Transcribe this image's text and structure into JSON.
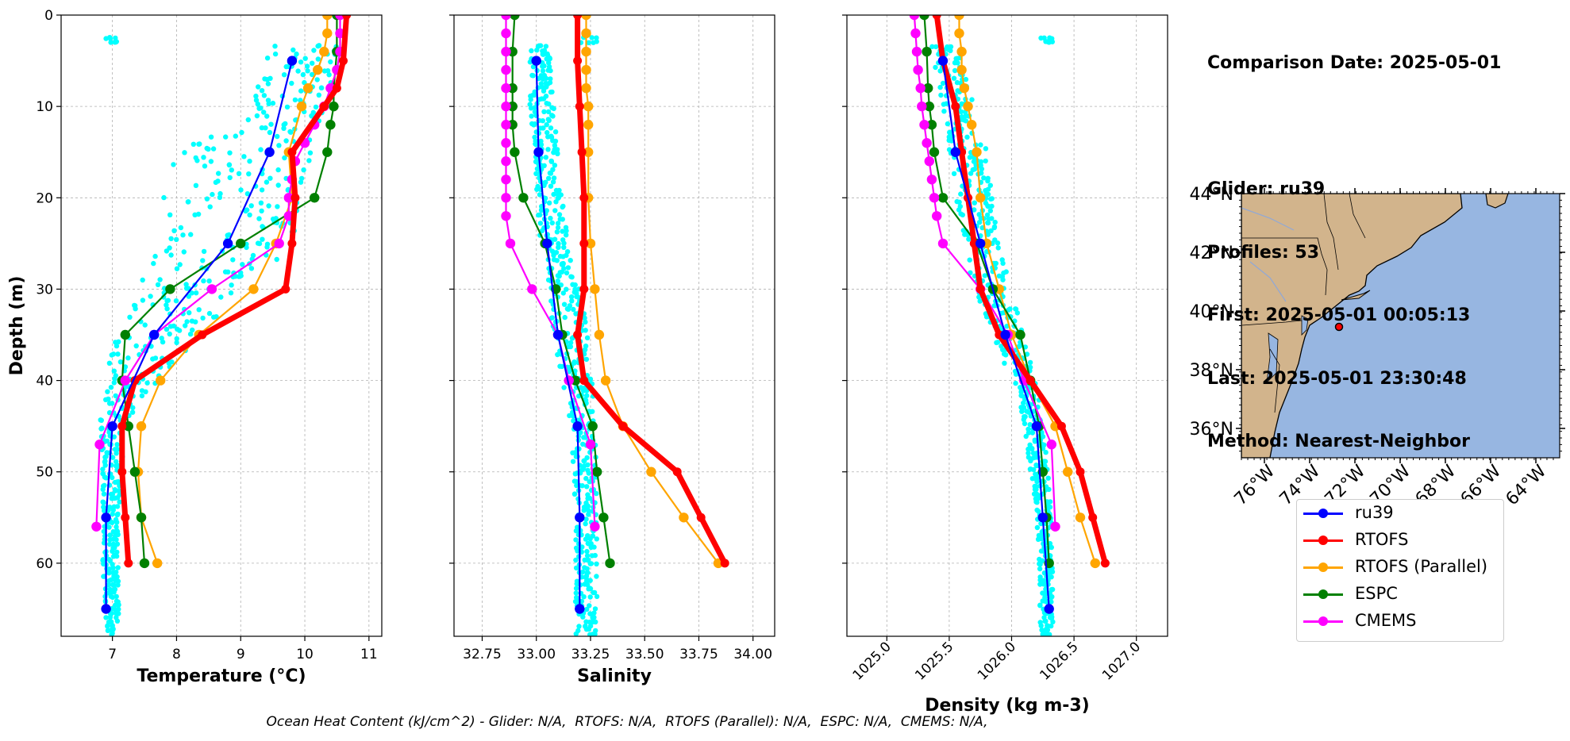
{
  "info": {
    "comparison_date": "Comparison Date: 2025-05-01",
    "glider": "Glider: ru39",
    "profiles": "Profiles: 53",
    "first": "First: 2025-05-01 00:05:13",
    "last": "Last: 2025-05-01 23:30:48",
    "method": "Method: Nearest-Neighbor"
  },
  "footer": "Ocean Heat Content (kJ/cm^2) - Glider: N/A,  RTOFS: N/A,  RTOFS (Parallel): N/A,  ESPC: N/A,  CMEMS: N/A,",
  "colors": {
    "ru39": "#0000ff",
    "RTOFS": "#ff0000",
    "RTOFS (Parallel)": "#ffa500",
    "ESPC": "#008000",
    "CMEMS": "#ff00ff",
    "glider_scatter": "#00ffff",
    "land": "#d2b48c",
    "ocean": "#97b6e1",
    "grid": "#b0b0b0"
  },
  "legend": [
    {
      "label": "ru39",
      "color": "#0000ff"
    },
    {
      "label": "RTOFS",
      "color": "#ff0000"
    },
    {
      "label": "RTOFS (Parallel)",
      "color": "#ffa500"
    },
    {
      "label": "ESPC",
      "color": "#008000"
    },
    {
      "label": "CMEMS",
      "color": "#ff00ff"
    }
  ],
  "chart_data": [
    {
      "type": "line",
      "xlabel": "Temperature (°C)",
      "ylabel": "Depth (m)",
      "xlim": [
        6.2,
        11.2
      ],
      "ylim": [
        68,
        0
      ],
      "xticks": [
        7,
        8,
        9,
        10,
        11
      ],
      "yticks": [
        0,
        10,
        20,
        30,
        40,
        50,
        60
      ],
      "grid": true,
      "scatter_band": [
        [
          3,
          9.4,
          10.6
        ],
        [
          10,
          9.2,
          10.3
        ],
        [
          15,
          8.0,
          10.1
        ],
        [
          20,
          7.8,
          10.0
        ],
        [
          25,
          7.8,
          9.9
        ],
        [
          30,
          7.3,
          9.0
        ],
        [
          35,
          7.0,
          8.4
        ],
        [
          40,
          6.9,
          7.7
        ],
        [
          45,
          6.8,
          7.2
        ],
        [
          50,
          6.85,
          7.15
        ],
        [
          55,
          6.85,
          7.1
        ],
        [
          60,
          6.85,
          7.1
        ],
        [
          67,
          6.9,
          7.1
        ]
      ],
      "series": [
        {
          "name": "ru39",
          "depth": [
            5,
            15,
            25,
            35,
            45,
            55,
            65
          ],
          "values": [
            9.8,
            9.45,
            8.8,
            7.65,
            7.0,
            6.9,
            6.9
          ]
        },
        {
          "name": "RTOFS",
          "depth": [
            0,
            5,
            8,
            10,
            15,
            20,
            25,
            30,
            35,
            40,
            45,
            50,
            55,
            60
          ],
          "values": [
            10.65,
            10.6,
            10.5,
            10.3,
            9.8,
            9.85,
            9.8,
            9.7,
            8.4,
            7.35,
            7.15,
            7.15,
            7.2,
            7.25
          ]
        },
        {
          "name": "RTOFS (Parallel)",
          "depth": [
            0,
            2,
            4,
            6,
            8,
            10,
            15,
            20,
            25,
            30,
            35,
            40,
            45,
            50,
            55,
            60
          ],
          "values": [
            10.35,
            10.35,
            10.3,
            10.2,
            10.05,
            9.95,
            9.75,
            9.8,
            9.55,
            9.2,
            8.35,
            7.75,
            7.45,
            7.4,
            7.45,
            7.7
          ]
        },
        {
          "name": "ESPC",
          "depth": [
            0,
            4,
            8,
            10,
            12,
            15,
            20,
            25,
            30,
            35,
            40,
            45,
            50,
            55,
            60
          ],
          "values": [
            10.5,
            10.5,
            10.45,
            10.45,
            10.4,
            10.35,
            10.15,
            9.0,
            7.9,
            7.2,
            7.15,
            7.25,
            7.35,
            7.45,
            7.5
          ]
        },
        {
          "name": "CMEMS",
          "depth": [
            0,
            2,
            4,
            6,
            8,
            10,
            12,
            14,
            16,
            18,
            20,
            22,
            25,
            30,
            35,
            40,
            47,
            56
          ],
          "values": [
            10.55,
            10.55,
            10.55,
            10.5,
            10.4,
            10.3,
            10.15,
            10.0,
            9.85,
            9.8,
            9.75,
            9.75,
            9.6,
            8.55,
            7.65,
            7.2,
            6.8,
            6.75
          ]
        }
      ]
    },
    {
      "type": "line",
      "xlabel": "Salinity",
      "ylabel": "",
      "xlim": [
        32.62,
        34.1
      ],
      "ylim": [
        68,
        0
      ],
      "xticks": [
        32.75,
        33.0,
        33.25,
        33.5,
        33.75,
        34.0
      ],
      "yticks": [
        0,
        10,
        20,
        30,
        40,
        50,
        60
      ],
      "grid": true,
      "scatter_band": [
        [
          3,
          32.97,
          33.07
        ],
        [
          10,
          32.97,
          33.08
        ],
        [
          15,
          32.99,
          33.1
        ],
        [
          20,
          33.0,
          33.12
        ],
        [
          25,
          33.02,
          33.15
        ],
        [
          30,
          33.05,
          33.2
        ],
        [
          35,
          33.08,
          33.24
        ],
        [
          40,
          33.12,
          33.26
        ],
        [
          45,
          33.16,
          33.27
        ],
        [
          50,
          33.17,
          33.28
        ],
        [
          55,
          33.18,
          33.28
        ],
        [
          60,
          33.18,
          33.28
        ],
        [
          67,
          33.18,
          33.28
        ]
      ],
      "series": [
        {
          "name": "ru39",
          "depth": [
            5,
            15,
            25,
            35,
            45,
            55,
            65
          ],
          "values": [
            33.0,
            33.01,
            33.05,
            33.1,
            33.19,
            33.2,
            33.2
          ]
        },
        {
          "name": "RTOFS",
          "depth": [
            0,
            5,
            10,
            15,
            20,
            25,
            30,
            35,
            40,
            45,
            50,
            55,
            60
          ],
          "values": [
            33.19,
            33.19,
            33.2,
            33.21,
            33.22,
            33.22,
            33.22,
            33.19,
            33.22,
            33.4,
            33.65,
            33.76,
            33.87
          ]
        },
        {
          "name": "RTOFS (Parallel)",
          "depth": [
            0,
            2,
            4,
            6,
            8,
            10,
            12,
            15,
            20,
            25,
            30,
            35,
            40,
            45,
            50,
            55,
            60
          ],
          "values": [
            33.23,
            33.23,
            33.23,
            33.23,
            33.23,
            33.24,
            33.24,
            33.24,
            33.24,
            33.25,
            33.27,
            33.29,
            33.32,
            33.4,
            33.53,
            33.68,
            33.84
          ]
        },
        {
          "name": "ESPC",
          "depth": [
            0,
            4,
            8,
            10,
            12,
            15,
            20,
            25,
            30,
            35,
            40,
            45,
            50,
            55,
            60
          ],
          "values": [
            32.9,
            32.89,
            32.89,
            32.89,
            32.89,
            32.9,
            32.94,
            33.04,
            33.09,
            33.12,
            33.18,
            33.26,
            33.28,
            33.31,
            33.34
          ]
        },
        {
          "name": "CMEMS",
          "depth": [
            0,
            2,
            4,
            6,
            8,
            10,
            12,
            14,
            16,
            18,
            20,
            22,
            25,
            30,
            35,
            40,
            47,
            56
          ],
          "values": [
            32.86,
            32.86,
            32.86,
            32.86,
            32.86,
            32.86,
            32.86,
            32.86,
            32.86,
            32.86,
            32.86,
            32.86,
            32.88,
            32.98,
            33.1,
            33.15,
            33.25,
            33.27
          ]
        }
      ]
    },
    {
      "type": "line",
      "xlabel": "Density (kg m-3)",
      "ylabel": "",
      "xlim": [
        1024.68,
        1027.25
      ],
      "ylim": [
        68,
        0
      ],
      "xticks": [
        1025.0,
        1025.5,
        1026.0,
        1026.5,
        1027.0
      ],
      "yticks": [
        0,
        10,
        20,
        30,
        40,
        50,
        60
      ],
      "grid": true,
      "scatter_band": [
        [
          3,
          1025.35,
          1025.55
        ],
        [
          10,
          1025.45,
          1025.7
        ],
        [
          15,
          1025.5,
          1025.8
        ],
        [
          20,
          1025.55,
          1025.85
        ],
        [
          25,
          1025.6,
          1025.9
        ],
        [
          30,
          1025.7,
          1026.0
        ],
        [
          35,
          1025.85,
          1026.1
        ],
        [
          40,
          1026.0,
          1026.2
        ],
        [
          45,
          1026.1,
          1026.25
        ],
        [
          50,
          1026.15,
          1026.3
        ],
        [
          55,
          1026.2,
          1026.32
        ],
        [
          60,
          1026.22,
          1026.33
        ],
        [
          67,
          1026.23,
          1026.33
        ]
      ],
      "series": [
        {
          "name": "ru39",
          "depth": [
            5,
            15,
            25,
            35,
            45,
            55,
            65
          ],
          "values": [
            1025.45,
            1025.55,
            1025.75,
            1025.95,
            1026.2,
            1026.25,
            1026.3
          ]
        },
        {
          "name": "RTOFS",
          "depth": [
            0,
            5,
            10,
            15,
            20,
            25,
            30,
            35,
            40,
            45,
            50,
            55,
            60
          ],
          "values": [
            1025.4,
            1025.45,
            1025.55,
            1025.6,
            1025.65,
            1025.7,
            1025.75,
            1025.9,
            1026.15,
            1026.4,
            1026.55,
            1026.65,
            1026.75
          ]
        },
        {
          "name": "RTOFS (Parallel)",
          "depth": [
            0,
            2,
            4,
            6,
            8,
            10,
            12,
            15,
            20,
            25,
            30,
            35,
            40,
            45,
            50,
            55,
            60
          ],
          "values": [
            1025.58,
            1025.58,
            1025.6,
            1025.6,
            1025.62,
            1025.65,
            1025.68,
            1025.72,
            1025.75,
            1025.8,
            1025.9,
            1026.0,
            1026.15,
            1026.35,
            1026.45,
            1026.55,
            1026.67
          ]
        },
        {
          "name": "ESPC",
          "depth": [
            0,
            4,
            8,
            10,
            12,
            15,
            20,
            25,
            30,
            35,
            40,
            45,
            50,
            55,
            60
          ],
          "values": [
            1025.3,
            1025.32,
            1025.33,
            1025.34,
            1025.36,
            1025.38,
            1025.45,
            1025.72,
            1025.85,
            1026.07,
            1026.15,
            1026.22,
            1026.25,
            1026.28,
            1026.3
          ]
        },
        {
          "name": "CMEMS",
          "depth": [
            0,
            2,
            4,
            6,
            8,
            10,
            12,
            14,
            16,
            18,
            20,
            22,
            25,
            30,
            35,
            40,
            47,
            56
          ],
          "values": [
            1025.22,
            1025.23,
            1025.24,
            1025.25,
            1025.27,
            1025.28,
            1025.3,
            1025.32,
            1025.34,
            1025.36,
            1025.38,
            1025.4,
            1025.45,
            1025.75,
            1025.97,
            1026.1,
            1026.32,
            1026.35
          ]
        }
      ]
    }
  ],
  "map": {
    "lat_ticks": [
      "44°N",
      "42°N",
      "40°N",
      "38°N",
      "36°N"
    ],
    "lon_ticks": [
      "76°W",
      "74°W",
      "72°W",
      "70°W",
      "68°W",
      "66°W",
      "64°W"
    ],
    "lat_range": [
      35,
      44
    ],
    "lon_range": [
      -77,
      -63
    ],
    "glider_position": [
      -71.65,
      39.6
    ]
  }
}
